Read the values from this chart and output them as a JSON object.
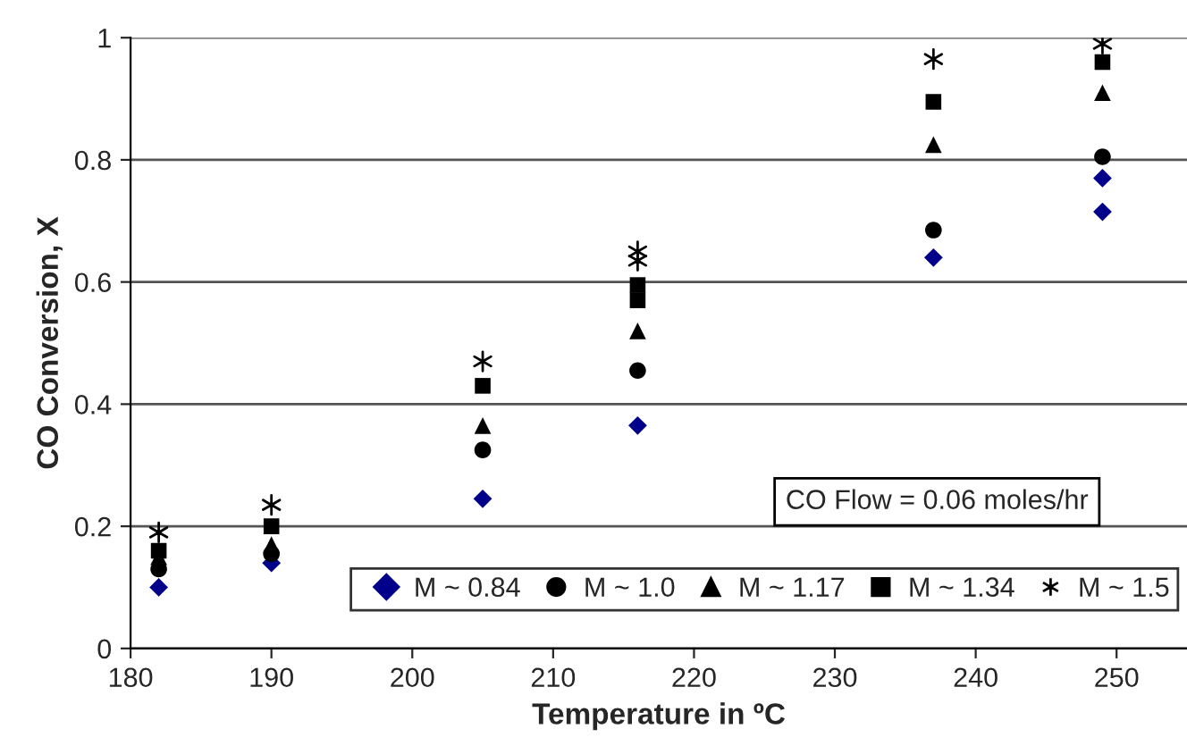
{
  "chart_data": {
    "type": "scatter",
    "xlabel": "Temperature in ºC",
    "ylabel": "CO Conversion, X",
    "x": [
      182,
      190,
      205,
      216,
      237,
      249
    ],
    "series": [
      {
        "name": "M ~ 0.84",
        "color": "#00008b",
        "marker": "diamond",
        "x": [
          182,
          190,
          205,
          216,
          237,
          249,
          249
        ],
        "values": [
          0.1,
          0.14,
          0.245,
          0.365,
          0.64,
          0.77,
          0.715
        ]
      },
      {
        "name": "M ~ 1.0",
        "color": "#000000",
        "marker": "circle",
        "values": [
          0.13,
          0.155,
          0.325,
          0.455,
          0.685,
          0.805
        ]
      },
      {
        "name": "M ~ 1.17",
        "color": "#000000",
        "marker": "triangle",
        "values": [
          0.15,
          0.17,
          0.365,
          0.52,
          0.825,
          0.91
        ]
      },
      {
        "name": "M ~ 1.34",
        "color": "#000000",
        "marker": "square",
        "x": [
          182,
          190,
          205,
          216,
          216,
          237,
          249
        ],
        "values": [
          0.16,
          0.2,
          0.43,
          0.57,
          0.595,
          0.895,
          0.96
        ]
      },
      {
        "name": "M ~ 1.5",
        "color": "#000000",
        "marker": "cross",
        "x": [
          182,
          190,
          205,
          216,
          216,
          237,
          249
        ],
        "values": [
          0.19,
          0.235,
          0.47,
          0.635,
          0.65,
          0.965,
          0.99
        ]
      }
    ],
    "xlim": [
      180,
      255
    ],
    "xticks": [
      180,
      190,
      200,
      210,
      220,
      230,
      240,
      250
    ],
    "ylim": [
      0,
      1
    ],
    "yticks": [
      0,
      0.2,
      0.4,
      0.6,
      0.8,
      1
    ],
    "grid": "y",
    "legend": "bottom",
    "annotations": [
      "CO Flow = 0.06 moles/hr"
    ]
  }
}
